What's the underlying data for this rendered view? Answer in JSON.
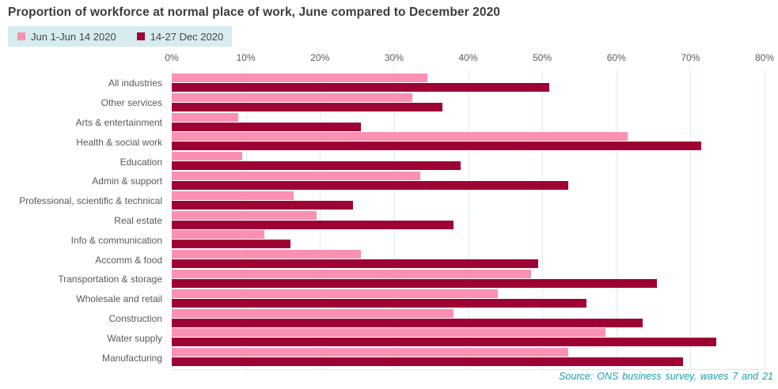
{
  "title": "Proportion of workforce at normal place of work, June compared to December 2020",
  "legend": {
    "items": [
      {
        "label": "Jun 1-Jun 14 2020",
        "color": "#fa91b2"
      },
      {
        "label": "14-27 Dec 2020",
        "color": "#9e0235"
      }
    ],
    "background": "#d7ecef"
  },
  "source": "Source: ONS business survey, waves 7 and 21",
  "chart_data": {
    "type": "bar",
    "orientation": "horizontal",
    "title": "Proportion of workforce at normal place of work, June compared to December 2020",
    "categories": [
      "All industries",
      "Other services",
      "Arts & entertainment",
      "Health & social work",
      "Education",
      "Admin & support",
      "Professional, scientific & technical",
      "Real estate",
      "Info & communication",
      "Accomm & food",
      "Transportation & storage",
      "Wholesale and retail",
      "Construction",
      "Water supply",
      "Manufacturing"
    ],
    "series": [
      {
        "name": "Jun 1-Jun 14 2020",
        "color": "#fa91b2",
        "values": [
          34.5,
          32.5,
          9,
          61.5,
          9.5,
          33.5,
          16.5,
          19.5,
          12.5,
          25.5,
          48.5,
          44,
          38,
          58.5,
          53.5
        ]
      },
      {
        "name": "14-27 Dec 2020",
        "color": "#9e0235",
        "values": [
          51,
          36.5,
          25.5,
          71.5,
          39,
          53.5,
          24.5,
          38,
          16,
          49.5,
          65.5,
          56,
          63.5,
          73.5,
          69
        ]
      }
    ],
    "axis_ticks": [
      "0%",
      "10%",
      "20%",
      "30%",
      "40%",
      "50%",
      "60%",
      "70%",
      "80%"
    ],
    "xlim": [
      0,
      80
    ],
    "xlabel": "",
    "ylabel": "",
    "grid": true,
    "legend_position": "top-left",
    "value_unit": "%"
  },
  "colors": {
    "gridline": "#dcedf0",
    "axis_text": "#595959",
    "title_text": "#3c3c3c",
    "source_text": "#1e9daf",
    "background": "#ffffff"
  }
}
